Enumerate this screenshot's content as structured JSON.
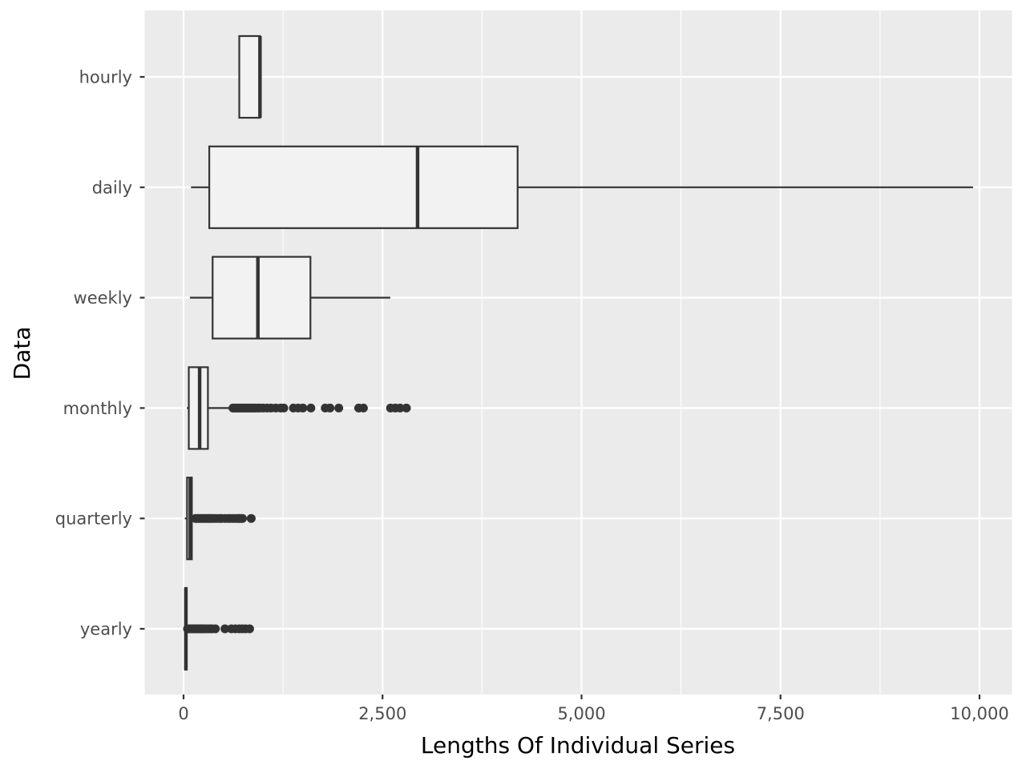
{
  "chart_data": {
    "type": "boxplot",
    "orientation": "horizontal",
    "xlabel": "Lengths Of Individual Series",
    "ylabel": "Data",
    "xlim": [
      -500,
      10300
    ],
    "x_ticks": [
      0,
      2500,
      5000,
      7500,
      10000
    ],
    "x_tick_labels": [
      "0",
      "2,500",
      "5,000",
      "7,500",
      "10,000"
    ],
    "grid": true,
    "legend": "none",
    "colors": {
      "panel": "#ebebeb",
      "grid_major": "#ffffff",
      "box_fill": "#f2f2f2",
      "box_line": "#333333",
      "outlier": "#333333"
    },
    "categories": [
      "yearly",
      "quarterly",
      "monthly",
      "weekly",
      "daily",
      "hourly"
    ],
    "boxes": [
      {
        "category": "yearly",
        "min": 13,
        "q1": 20,
        "median": 29,
        "q3": 40,
        "whisker_high": 45,
        "outliers": [
          50,
          60,
          70,
          80,
          90,
          100,
          110,
          120,
          130,
          140,
          150,
          160,
          170,
          180,
          190,
          200,
          210,
          225,
          240,
          255,
          270,
          300,
          330,
          360,
          400,
          520,
          600,
          650,
          700,
          740,
          780,
          830
        ]
      },
      {
        "category": "quarterly",
        "min": 16,
        "q1": 44,
        "median": 84,
        "q3": 104,
        "whisker_high": 140,
        "outliers": [
          150,
          170,
          190,
          210,
          230,
          250,
          270,
          290,
          310,
          330,
          350,
          370,
          400,
          430,
          460,
          480,
          520,
          560,
          590,
          620,
          650,
          680,
          700,
          720,
          740,
          850
        ]
      },
      {
        "category": "monthly",
        "min": 42,
        "q1": 66,
        "median": 202,
        "q3": 306,
        "whisker_high": 600,
        "outliers": [
          620,
          640,
          660,
          680,
          700,
          720,
          740,
          760,
          780,
          800,
          820,
          840,
          860,
          880,
          900,
          930,
          960,
          1000,
          1050,
          1100,
          1160,
          1220,
          1260,
          1380,
          1440,
          1500,
          1600,
          1780,
          1840,
          1950,
          2200,
          2260,
          2600,
          2660,
          2720,
          2800
        ]
      },
      {
        "category": "weekly",
        "min": 80,
        "q1": 365,
        "median": 934,
        "q3": 1594,
        "whisker_high": 2597,
        "outliers": []
      },
      {
        "category": "daily",
        "min": 93,
        "q1": 323,
        "median": 2940,
        "q3": 4197,
        "whisker_high": 9919,
        "outliers": []
      },
      {
        "category": "hourly",
        "min": 700,
        "q1": 700,
        "median": 960,
        "q3": 960,
        "whisker_high": 960,
        "outliers": []
      }
    ]
  }
}
